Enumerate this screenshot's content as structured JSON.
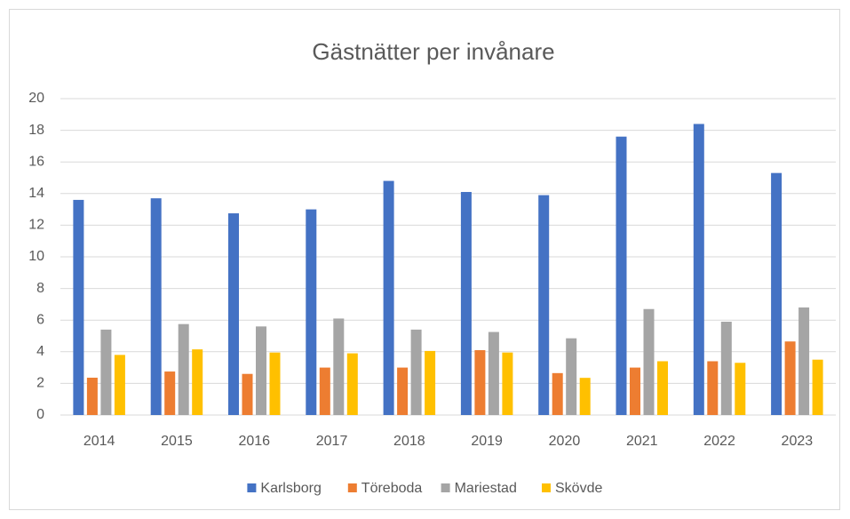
{
  "chart_data": {
    "type": "bar",
    "title": "Gästnätter per invånare",
    "categories": [
      "2014",
      "2015",
      "2016",
      "2017",
      "2018",
      "2019",
      "2020",
      "2021",
      "2022",
      "2023"
    ],
    "series": [
      {
        "name": "Karlsborg",
        "color": "#4472c4",
        "values": [
          13.6,
          13.7,
          12.75,
          13.0,
          14.8,
          14.1,
          13.9,
          17.6,
          18.4,
          15.3
        ]
      },
      {
        "name": "Töreboda",
        "color": "#ed7d31",
        "values": [
          2.36,
          2.75,
          2.6,
          3.0,
          3.0,
          4.1,
          2.65,
          3.0,
          3.4,
          4.65
        ]
      },
      {
        "name": "Mariestad",
        "color": "#a5a5a5",
        "values": [
          5.4,
          5.75,
          5.6,
          6.1,
          5.4,
          5.25,
          4.85,
          6.7,
          5.9,
          6.8
        ]
      },
      {
        "name": "Skövde",
        "color": "#ffc000",
        "values": [
          3.8,
          4.15,
          3.95,
          3.9,
          4.05,
          3.95,
          2.35,
          3.4,
          3.3,
          3.5
        ]
      }
    ],
    "ylim": [
      0,
      20
    ],
    "yticks": [
      0,
      2,
      4,
      6,
      8,
      10,
      12,
      14,
      16,
      18,
      20
    ],
    "grid": true,
    "legend": "bottom"
  }
}
